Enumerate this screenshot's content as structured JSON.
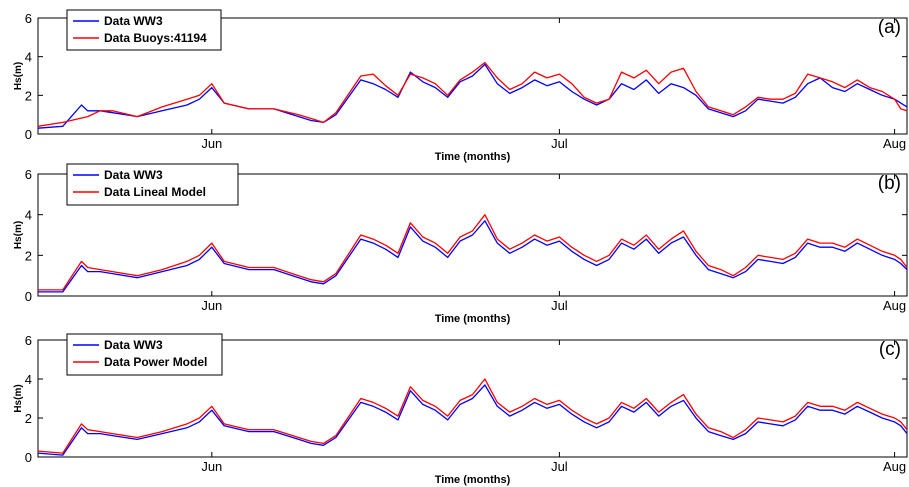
{
  "chart_data": [
    {
      "type": "line",
      "panel_label": "(a)",
      "xlabel": "Time (months)",
      "ylabel": "Hs(m)",
      "ylim": [
        0,
        6
      ],
      "yticks": [
        0,
        2,
        4,
        6
      ],
      "xlim": [
        0,
        70
      ],
      "xticks": [
        {
          "x": 14,
          "label": "Jun"
        },
        {
          "x": 42,
          "label": "Jul"
        },
        {
          "x": 69,
          "label": "Aug"
        }
      ],
      "x_unit": "days since May 17",
      "legend_position": "top-left",
      "grid": false,
      "series": [
        {
          "name": "Data WW3",
          "color": "#0000ff",
          "x": [
            0,
            2,
            3.5,
            4,
            5,
            6,
            8,
            10,
            12,
            13,
            14,
            15,
            17,
            19,
            21,
            22,
            23,
            24,
            26,
            27,
            28,
            29,
            30,
            31,
            32,
            33,
            34,
            35,
            36,
            37,
            38,
            39,
            40,
            41,
            42,
            43,
            44,
            45,
            46,
            47,
            48,
            49,
            50,
            51,
            52,
            53,
            54,
            55,
            56,
            57,
            58,
            59,
            60,
            61,
            62,
            63,
            64,
            65,
            66,
            67,
            68,
            69,
            69.5,
            70
          ],
          "y": [
            0.3,
            0.4,
            1.5,
            1.2,
            1.2,
            1.1,
            0.9,
            1.2,
            1.5,
            1.8,
            2.4,
            1.6,
            1.3,
            1.3,
            0.9,
            0.7,
            0.6,
            1.0,
            2.8,
            2.6,
            2.3,
            1.9,
            3.2,
            2.7,
            2.4,
            1.9,
            2.7,
            3.0,
            3.6,
            2.6,
            2.1,
            2.4,
            2.8,
            2.5,
            2.7,
            2.2,
            1.8,
            1.5,
            1.8,
            2.6,
            2.3,
            2.8,
            2.1,
            2.6,
            2.4,
            2.0,
            1.3,
            1.1,
            0.9,
            1.2,
            1.8,
            1.7,
            1.6,
            1.9,
            2.6,
            2.9,
            2.4,
            2.2,
            2.6,
            2.3,
            2.0,
            1.8,
            1.6,
            1.4
          ]
        },
        {
          "name": "Data Buoys:41194",
          "color": "#ff0000",
          "x": [
            0,
            2,
            4,
            5,
            6,
            8,
            10,
            12,
            13,
            14,
            15,
            17,
            19,
            21,
            22,
            23,
            24,
            26,
            27,
            28,
            29,
            30,
            31,
            32,
            33,
            34,
            35,
            36,
            37,
            38,
            39,
            40,
            41,
            42,
            43,
            44,
            45,
            46,
            47,
            48,
            49,
            50,
            51,
            52,
            53,
            54,
            55,
            56,
            57,
            58,
            59,
            60,
            61,
            62,
            63,
            64,
            65,
            66,
            67,
            68,
            69,
            69.5,
            70
          ],
          "y": [
            0.4,
            0.6,
            0.9,
            1.2,
            1.2,
            0.9,
            1.4,
            1.8,
            2.0,
            2.6,
            1.6,
            1.3,
            1.3,
            1.0,
            0.8,
            0.6,
            1.1,
            3.0,
            3.1,
            2.5,
            2.0,
            3.1,
            2.9,
            2.6,
            2.0,
            2.8,
            3.2,
            3.7,
            2.9,
            2.3,
            2.6,
            3.2,
            2.9,
            3.1,
            2.6,
            1.9,
            1.6,
            1.8,
            3.2,
            2.9,
            3.3,
            2.6,
            3.2,
            3.4,
            2.2,
            1.4,
            1.2,
            1.0,
            1.4,
            1.9,
            1.8,
            1.8,
            2.1,
            3.1,
            2.9,
            2.7,
            2.4,
            2.8,
            2.4,
            2.2,
            1.8,
            1.3,
            1.2
          ]
        }
      ]
    },
    {
      "type": "line",
      "panel_label": "(b)",
      "xlabel": "Time (months)",
      "ylabel": "Hs(m)",
      "ylim": [
        0,
        6
      ],
      "yticks": [
        0,
        2,
        4,
        6
      ],
      "xlim": [
        0,
        70
      ],
      "xticks": [
        {
          "x": 14,
          "label": "Jun"
        },
        {
          "x": 42,
          "label": "Jul"
        },
        {
          "x": 69,
          "label": "Aug"
        }
      ],
      "x_unit": "days since May 17",
      "legend_position": "top-left",
      "grid": false,
      "series": [
        {
          "name": "Data WW3",
          "color": "#0000ff",
          "x": [
            0,
            2,
            3.5,
            4,
            5,
            6,
            8,
            10,
            12,
            13,
            14,
            15,
            17,
            19,
            21,
            22,
            23,
            24,
            26,
            27,
            28,
            29,
            30,
            31,
            32,
            33,
            34,
            35,
            36,
            37,
            38,
            39,
            40,
            41,
            42,
            43,
            44,
            45,
            46,
            47,
            48,
            49,
            50,
            51,
            52,
            53,
            54,
            55,
            56,
            57,
            58,
            59,
            60,
            61,
            62,
            63,
            64,
            65,
            66,
            67,
            68,
            69,
            69.5,
            70
          ],
          "y": [
            0.2,
            0.2,
            1.5,
            1.2,
            1.2,
            1.1,
            0.9,
            1.2,
            1.5,
            1.8,
            2.4,
            1.6,
            1.3,
            1.3,
            0.9,
            0.7,
            0.6,
            1.0,
            2.8,
            2.6,
            2.3,
            1.9,
            3.4,
            2.7,
            2.4,
            1.9,
            2.7,
            3.0,
            3.7,
            2.6,
            2.1,
            2.4,
            2.8,
            2.5,
            2.7,
            2.2,
            1.8,
            1.5,
            1.8,
            2.6,
            2.3,
            2.8,
            2.1,
            2.6,
            2.9,
            2.0,
            1.3,
            1.1,
            0.9,
            1.2,
            1.8,
            1.7,
            1.6,
            1.9,
            2.6,
            2.4,
            2.4,
            2.2,
            2.6,
            2.3,
            2.0,
            1.8,
            1.6,
            1.3
          ]
        },
        {
          "name": "Data Lineal Model",
          "color": "#ff0000",
          "x": [
            0,
            2,
            3.5,
            4,
            5,
            6,
            8,
            10,
            12,
            13,
            14,
            15,
            17,
            19,
            21,
            22,
            23,
            24,
            26,
            27,
            28,
            29,
            30,
            31,
            32,
            33,
            34,
            35,
            36,
            37,
            38,
            39,
            40,
            41,
            42,
            43,
            44,
            45,
            46,
            47,
            48,
            49,
            50,
            51,
            52,
            53,
            54,
            55,
            56,
            57,
            58,
            59,
            60,
            61,
            62,
            63,
            64,
            65,
            66,
            67,
            68,
            69,
            69.5,
            70
          ],
          "y": [
            0.3,
            0.3,
            1.7,
            1.4,
            1.3,
            1.2,
            1.0,
            1.3,
            1.7,
            2.0,
            2.6,
            1.7,
            1.4,
            1.4,
            1.0,
            0.8,
            0.7,
            1.1,
            3.0,
            2.8,
            2.5,
            2.1,
            3.6,
            2.9,
            2.6,
            2.1,
            2.9,
            3.2,
            4.0,
            2.8,
            2.3,
            2.6,
            3.0,
            2.7,
            2.9,
            2.4,
            2.0,
            1.7,
            2.0,
            2.8,
            2.5,
            3.0,
            2.3,
            2.8,
            3.2,
            2.2,
            1.5,
            1.3,
            1.0,
            1.4,
            2.0,
            1.9,
            1.8,
            2.1,
            2.8,
            2.6,
            2.6,
            2.4,
            2.8,
            2.5,
            2.2,
            2.0,
            1.8,
            1.4
          ]
        }
      ]
    },
    {
      "type": "line",
      "panel_label": "(c)",
      "xlabel": "Time (months)",
      "ylabel": "Hs(m)",
      "ylim": [
        0,
        6
      ],
      "yticks": [
        0,
        2,
        4,
        6
      ],
      "xlim": [
        0,
        70
      ],
      "xticks": [
        {
          "x": 14,
          "label": "Jun"
        },
        {
          "x": 42,
          "label": "Jul"
        },
        {
          "x": 69,
          "label": "Aug"
        }
      ],
      "x_unit": "days since May 17",
      "legend_position": "top-left",
      "grid": false,
      "series": [
        {
          "name": "Data WW3",
          "color": "#0000ff",
          "x": [
            0,
            2,
            3.5,
            4,
            5,
            6,
            8,
            10,
            12,
            13,
            14,
            15,
            17,
            19,
            21,
            22,
            23,
            24,
            26,
            27,
            28,
            29,
            30,
            31,
            32,
            33,
            34,
            35,
            36,
            37,
            38,
            39,
            40,
            41,
            42,
            43,
            44,
            45,
            46,
            47,
            48,
            49,
            50,
            51,
            52,
            53,
            54,
            55,
            56,
            57,
            58,
            59,
            60,
            61,
            62,
            63,
            64,
            65,
            66,
            67,
            68,
            69,
            69.5,
            70
          ],
          "y": [
            0.2,
            0.1,
            1.5,
            1.2,
            1.2,
            1.1,
            0.9,
            1.2,
            1.5,
            1.8,
            2.4,
            1.6,
            1.3,
            1.3,
            0.9,
            0.7,
            0.6,
            1.0,
            2.8,
            2.6,
            2.3,
            1.9,
            3.4,
            2.7,
            2.4,
            1.9,
            2.7,
            3.0,
            3.7,
            2.6,
            2.1,
            2.4,
            2.8,
            2.5,
            2.7,
            2.2,
            1.8,
            1.5,
            1.8,
            2.6,
            2.3,
            2.8,
            2.1,
            2.6,
            2.9,
            2.0,
            1.3,
            1.1,
            0.9,
            1.2,
            1.8,
            1.7,
            1.6,
            1.9,
            2.6,
            2.4,
            2.4,
            2.2,
            2.6,
            2.3,
            2.0,
            1.8,
            1.6,
            1.2
          ]
        },
        {
          "name": "Data Power Model",
          "color": "#ff0000",
          "x": [
            0,
            2,
            3.5,
            4,
            5,
            6,
            8,
            10,
            12,
            13,
            14,
            15,
            17,
            19,
            21,
            22,
            23,
            24,
            26,
            27,
            28,
            29,
            30,
            31,
            32,
            33,
            34,
            35,
            36,
            37,
            38,
            39,
            40,
            41,
            42,
            43,
            44,
            45,
            46,
            47,
            48,
            49,
            50,
            51,
            52,
            53,
            54,
            55,
            56,
            57,
            58,
            59,
            60,
            61,
            62,
            63,
            64,
            65,
            66,
            67,
            68,
            69,
            69.5,
            70
          ],
          "y": [
            0.3,
            0.2,
            1.7,
            1.4,
            1.3,
            1.2,
            1.0,
            1.3,
            1.7,
            2.0,
            2.6,
            1.7,
            1.4,
            1.4,
            1.0,
            0.8,
            0.7,
            1.1,
            3.0,
            2.8,
            2.5,
            2.1,
            3.6,
            2.9,
            2.6,
            2.1,
            2.9,
            3.2,
            4.0,
            2.8,
            2.3,
            2.6,
            3.0,
            2.7,
            2.9,
            2.4,
            2.0,
            1.7,
            2.0,
            2.8,
            2.5,
            3.0,
            2.3,
            2.8,
            3.2,
            2.2,
            1.5,
            1.3,
            1.0,
            1.4,
            2.0,
            1.9,
            1.8,
            2.1,
            2.8,
            2.6,
            2.6,
            2.4,
            2.8,
            2.5,
            2.2,
            2.0,
            1.8,
            1.4
          ]
        }
      ]
    }
  ]
}
